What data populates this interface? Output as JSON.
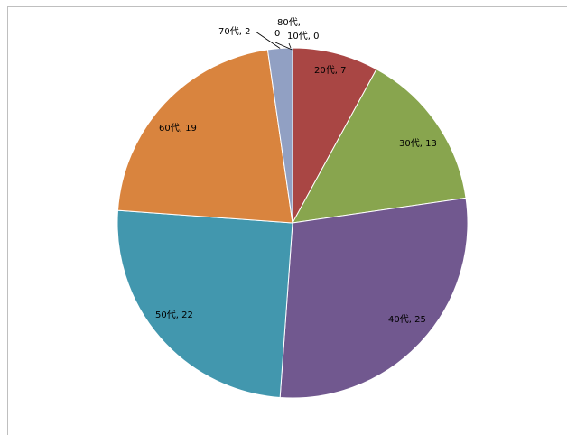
{
  "chart_data": {
    "type": "pie",
    "title": "",
    "categories": [
      "10代",
      "20代",
      "30代",
      "40代",
      "50代",
      "60代",
      "70代",
      "80代"
    ],
    "values": [
      0,
      7,
      13,
      25,
      22,
      19,
      2,
      0
    ],
    "labels": [
      "10代, 0",
      "20代, 7",
      "30代, 13",
      "40代, 25",
      "50代, 22",
      "60代, 19",
      "70代, 2",
      "80代,\n0"
    ],
    "colors": [
      "#4F81BD",
      "#C0504D",
      "#9BBB59",
      "#8064A2",
      "#4BACC6",
      "#F79646",
      "#A5B6DE",
      "#4F81BD"
    ],
    "legend": "none",
    "start_angle_deg": 0,
    "direction": "clockwise"
  }
}
